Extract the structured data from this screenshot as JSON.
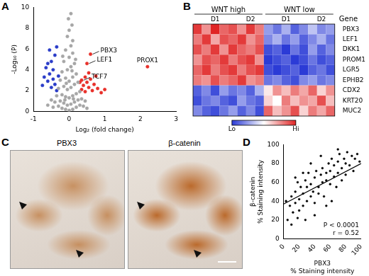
{
  "chart_data": [
    {
      "panel": "A",
      "type": "scatter",
      "x_label": "Log₂ (fold change)",
      "y_label": "-Log₁₀ (P)",
      "xlim": [
        -1,
        3
      ],
      "xticks": [
        -1,
        0,
        1,
        2,
        3
      ],
      "ylim": [
        0,
        10
      ],
      "yticks": [
        0,
        2,
        4,
        6,
        8,
        10
      ],
      "grid": false,
      "series": [
        {
          "color": "#a6a6a6",
          "x": [
            -0.3,
            -0.2,
            -0.1,
            0,
            0.1,
            0.2,
            0.3,
            -0.4,
            -0.25,
            -0.15,
            -0.05,
            0.05,
            0.15,
            0.25,
            0.35,
            -0.35,
            -0.2,
            -0.1,
            0,
            0.1,
            0.2,
            0.3,
            -0.3,
            -0.15,
            -0.05,
            0.05,
            0.15,
            0.25,
            -0.25,
            -0.1,
            0,
            0.1,
            0.2,
            -0.2,
            -0.05,
            0.05,
            0.15,
            -0.15,
            0,
            0.1,
            -0.1,
            0.05,
            0.1,
            -0.05,
            0,
            0.08,
            -0.02,
            0.05,
            -0.45,
            0.4,
            -0.5,
            0.45,
            -0.12,
            0.12,
            -0.08,
            0.08,
            -0.18,
            0.18,
            -0.6,
            0.5
          ],
          "values": [
            0.5,
            0.3,
            0.2,
            0.1,
            0.2,
            0.4,
            0.6,
            0.9,
            1.0,
            0.8,
            0.6,
            0.7,
            0.9,
            1.1,
            1.2,
            1.5,
            1.6,
            1.4,
            1.3,
            1.5,
            1.7,
            1.9,
            2.2,
            2.4,
            2.1,
            2.3,
            2.6,
            2.8,
            3.0,
            3.2,
            2.9,
            3.3,
            3.6,
            3.8,
            4.0,
            4.3,
            4.6,
            4.8,
            5.2,
            5.6,
            5.9,
            6.3,
            6.8,
            7.2,
            7.8,
            8.3,
            8.9,
            9.4,
            0.4,
            0.5,
            1.1,
            1.0,
            1.1,
            1.2,
            2.7,
            3.9,
            5.3,
            5.0,
            0.6,
            0.3
          ]
        },
        {
          "color": "#e8302a",
          "x": [
            0.35,
            0.4,
            0.45,
            0.5,
            0.55,
            0.6,
            0.65,
            0.7,
            0.8,
            0.9,
            0.45,
            0.55,
            0.3,
            0.75,
            1.0,
            0.6,
            2.2,
            0.5,
            0.35
          ],
          "values": [
            2.1,
            2.5,
            1.9,
            2.8,
            2.3,
            3.1,
            2.0,
            2.6,
            2.2,
            1.8,
            3.3,
            3.7,
            2.8,
            3.4,
            2.1,
            5.5,
            4.3,
            4.6,
            3.0
          ]
        },
        {
          "color": "#2a3cc8",
          "x": [
            -0.35,
            -0.4,
            -0.45,
            -0.5,
            -0.55,
            -0.6,
            -0.65,
            -0.7,
            -0.5,
            -0.4,
            -0.55,
            -0.3,
            -0.75,
            -0.45,
            -0.35,
            -0.6
          ],
          "values": [
            2.0,
            2.6,
            3.1,
            2.3,
            3.6,
            2.9,
            4.2,
            3.3,
            4.8,
            5.4,
            5.9,
            3.4,
            2.5,
            4.0,
            6.2,
            4.6
          ]
        }
      ],
      "annotations": [
        {
          "text": "PBX3",
          "x": 0.6,
          "y": 5.5
        },
        {
          "text": "PROX1",
          "x": 2.2,
          "y": 4.3
        },
        {
          "text": "LEF1",
          "x": 0.5,
          "y": 4.6
        },
        {
          "text": "TCF7",
          "x": 0.35,
          "y": 3.0
        }
      ]
    },
    {
      "panel": "B",
      "type": "heatmap",
      "gene_header": "Gene",
      "rows": [
        "PBX3",
        "LEF1",
        "DKK1",
        "PROM1",
        "LGR5",
        "EPHB2",
        "CDX2",
        "KRT20",
        "MUC2"
      ],
      "column_groups": [
        {
          "label": "WNT high",
          "subgroups": [
            {
              "label": "D1",
              "count": 5
            },
            {
              "label": "D2",
              "count": 3
            }
          ]
        },
        {
          "label": "WNT low",
          "subgroups": [
            {
              "label": "D1",
              "count": 5
            },
            {
              "label": "D2",
              "count": 3
            }
          ]
        }
      ],
      "cells": [
        [
          0.9,
          0.5,
          1.0,
          0.7,
          0.8,
          0.5,
          0.9,
          0.6,
          -0.5,
          -0.7,
          -0.4,
          -0.8,
          -0.6,
          -0.3,
          -0.6,
          -0.5
        ],
        [
          0.6,
          0.9,
          0.4,
          0.8,
          0.7,
          0.9,
          0.5,
          0.7,
          -0.6,
          -0.4,
          -0.7,
          -0.5,
          -0.8,
          -0.6,
          -0.4,
          -0.7
        ],
        [
          0.8,
          0.6,
          0.9,
          0.5,
          0.9,
          0.7,
          0.6,
          0.8,
          -0.9,
          -0.8,
          -1.0,
          -0.7,
          -0.9,
          -0.5,
          -0.8,
          -0.6
        ],
        [
          0.5,
          0.8,
          0.7,
          0.9,
          0.6,
          0.8,
          0.9,
          0.5,
          -1.0,
          -0.9,
          -0.8,
          -1.0,
          -0.9,
          -0.7,
          -0.9,
          -0.8
        ],
        [
          0.7,
          0.9,
          0.6,
          0.8,
          0.9,
          0.6,
          0.8,
          0.9,
          -0.9,
          -1.0,
          -0.9,
          -0.8,
          -1.0,
          -0.8,
          -0.7,
          -0.9
        ],
        [
          0.6,
          0.5,
          0.8,
          0.6,
          0.7,
          0.9,
          0.5,
          0.6,
          -0.7,
          -0.6,
          -0.8,
          -0.9,
          -0.6,
          -0.5,
          -0.7,
          -0.6
        ],
        [
          -0.8,
          -0.6,
          -0.9,
          -0.5,
          -0.7,
          -0.6,
          -0.8,
          -0.4,
          0.1,
          0.5,
          0.3,
          0.6,
          0.4,
          0.7,
          0.2,
          0.5
        ],
        [
          -0.9,
          -0.7,
          -0.6,
          -0.8,
          -0.9,
          -0.5,
          -0.7,
          -0.8,
          0.2,
          0.0,
          0.6,
          0.3,
          0.5,
          0.4,
          0.8,
          0.3
        ],
        [
          -0.6,
          -0.8,
          -0.9,
          -0.7,
          -0.5,
          -0.8,
          -0.6,
          -0.9,
          0.7,
          0.3,
          0.5,
          0.8,
          0.2,
          0.6,
          0.4,
          0.7
        ]
      ],
      "colorbar": {
        "range": [
          -1,
          1
        ],
        "labels": [
          "Lo",
          "Hi"
        ]
      }
    },
    {
      "panel": "D",
      "type": "scatter",
      "x_label": [
        "PBX3",
        "% Staining intensity"
      ],
      "y_label": [
        "β-catenin",
        "% Staining intensity"
      ],
      "xlim": [
        0,
        100
      ],
      "xticks": [
        0,
        20,
        40,
        60,
        80,
        100
      ],
      "ylim": [
        0,
        100
      ],
      "yticks": [
        0,
        20,
        40,
        60,
        80,
        100
      ],
      "grid": false,
      "series": [
        {
          "color": "#000000",
          "marker": "circle",
          "x": [
            5,
            8,
            10,
            12,
            15,
            15,
            18,
            20,
            20,
            22,
            25,
            25,
            28,
            30,
            30,
            32,
            35,
            35,
            38,
            40,
            40,
            42,
            45,
            45,
            48,
            50,
            50,
            52,
            55,
            55,
            58,
            60,
            60,
            62,
            65,
            65,
            68,
            70,
            70,
            72,
            75,
            75,
            78,
            80,
            80,
            82,
            85,
            88,
            90,
            92,
            95,
            98,
            10,
            18,
            28,
            40,
            55,
            3,
            62,
            35,
            25,
            48,
            15,
            70
          ],
          "values": [
            20,
            35,
            45,
            28,
            50,
            38,
            60,
            30,
            42,
            55,
            48,
            35,
            62,
            40,
            55,
            70,
            45,
            58,
            50,
            65,
            38,
            72,
            55,
            48,
            68,
            60,
            75,
            45,
            70,
            62,
            80,
            58,
            72,
            85,
            66,
            78,
            55,
            82,
            70,
            90,
            75,
            62,
            85,
            80,
            68,
            92,
            78,
            88,
            72,
            85,
            90,
            82,
            15,
            22,
            20,
            25,
            35,
            40,
            40,
            80,
            70,
            88,
            65,
            95
          ]
        },
        {
          "color": "#000000",
          "type": "line",
          "x": [
            0,
            100
          ],
          "values": [
            37,
            80
          ]
        }
      ],
      "annotations": [
        {
          "text": "P < 0.0001"
        },
        {
          "text": "r = 0.52"
        }
      ]
    }
  ],
  "images": {
    "panel": "C",
    "titles": [
      "PBX3",
      "β-catenin"
    ]
  }
}
